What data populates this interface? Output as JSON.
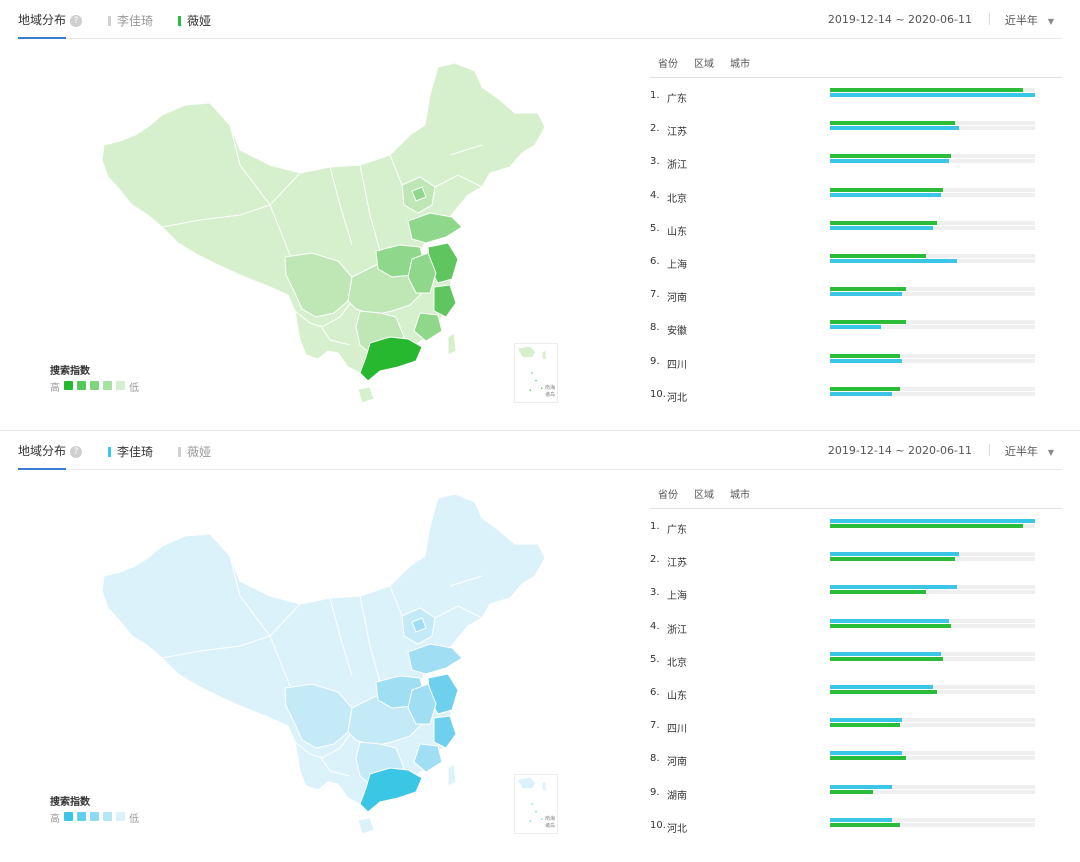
{
  "colors": {
    "green": "#2bbd3a",
    "blue": "#3cc6e6",
    "track": "#efefef"
  },
  "panels": [
    {
      "tab_title": "地域分布",
      "help_icon": "question-circle-icon",
      "legend": [
        {
          "label": "李佳琦",
          "color": "#d0d0d0",
          "active": false
        },
        {
          "label": "薇娅",
          "color": "#2bbd3a",
          "active": true
        }
      ],
      "date_range": "2019-12-14 ~ 2020-06-11",
      "period": "近半年",
      "map_legend": {
        "title": "搜索指数",
        "high": "高",
        "low": "低",
        "swatches": [
          "#24b92f",
          "#56c75a",
          "#7fd47e",
          "#a8e1a4",
          "#d3efcd"
        ]
      },
      "minimap_label": "南海\n诸岛",
      "rank_tabs": [
        "省份",
        "区域",
        "城市"
      ],
      "primary_color": "#2bbd3a",
      "secondary_color": "#3cc6e6",
      "ranking": [
        {
          "rank": "1.",
          "name": "广东",
          "primary": 0.94,
          "secondary": 1.0
        },
        {
          "rank": "2.",
          "name": "江苏",
          "primary": 0.61,
          "secondary": 0.63
        },
        {
          "rank": "3.",
          "name": "浙江",
          "primary": 0.59,
          "secondary": 0.58
        },
        {
          "rank": "4.",
          "name": "北京",
          "primary": 0.55,
          "secondary": 0.54
        },
        {
          "rank": "5.",
          "name": "山东",
          "primary": 0.52,
          "secondary": 0.5
        },
        {
          "rank": "6.",
          "name": "上海",
          "primary": 0.47,
          "secondary": 0.62
        },
        {
          "rank": "7.",
          "name": "河南",
          "primary": 0.37,
          "secondary": 0.35
        },
        {
          "rank": "8.",
          "name": "安徽",
          "primary": 0.37,
          "secondary": 0.25
        },
        {
          "rank": "9.",
          "name": "四川",
          "primary": 0.34,
          "secondary": 0.35
        },
        {
          "rank": "10.",
          "name": "河北",
          "primary": 0.34,
          "secondary": 0.3
        }
      ],
      "map": {
        "base": "#d6f0cd",
        "mid": "#bfe7b6",
        "dark": "#8fd78a",
        "darker": "#5ec55f",
        "darkest": "#28b82f",
        "stroke": "#ffffff"
      }
    },
    {
      "tab_title": "地域分布",
      "help_icon": "question-circle-icon",
      "legend": [
        {
          "label": "李佳琦",
          "color": "#3cc6e6",
          "active": true
        },
        {
          "label": "薇娅",
          "color": "#d0d0d0",
          "active": false
        }
      ],
      "date_range": "2019-12-14 ~ 2020-06-11",
      "period": "近半年",
      "map_legend": {
        "title": "搜索指数",
        "high": "高",
        "low": "低",
        "swatches": [
          "#3cc6e6",
          "#62d0ec",
          "#8cdbf1",
          "#b4e6f6",
          "#dbf2fb"
        ]
      },
      "minimap_label": "南海\n诸岛",
      "rank_tabs": [
        "省份",
        "区域",
        "城市"
      ],
      "primary_color": "#3cc6e6",
      "secondary_color": "#2bbd3a",
      "ranking": [
        {
          "rank": "1.",
          "name": "广东",
          "primary": 1.0,
          "secondary": 0.94
        },
        {
          "rank": "2.",
          "name": "江苏",
          "primary": 0.63,
          "secondary": 0.61
        },
        {
          "rank": "3.",
          "name": "上海",
          "primary": 0.62,
          "secondary": 0.47
        },
        {
          "rank": "4.",
          "name": "浙江",
          "primary": 0.58,
          "secondary": 0.59
        },
        {
          "rank": "5.",
          "name": "北京",
          "primary": 0.54,
          "secondary": 0.55
        },
        {
          "rank": "6.",
          "name": "山东",
          "primary": 0.5,
          "secondary": 0.52
        },
        {
          "rank": "7.",
          "name": "四川",
          "primary": 0.35,
          "secondary": 0.34
        },
        {
          "rank": "8.",
          "name": "河南",
          "primary": 0.35,
          "secondary": 0.37
        },
        {
          "rank": "9.",
          "name": "湖南",
          "primary": 0.3,
          "secondary": 0.21
        },
        {
          "rank": "10.",
          "name": "河北",
          "primary": 0.3,
          "secondary": 0.34
        }
      ],
      "map": {
        "base": "#dcf2fb",
        "mid": "#c4eaf8",
        "dark": "#9fdef3",
        "darker": "#6fd0ee",
        "darkest": "#3cc6e6",
        "stroke": "#ffffff"
      }
    }
  ]
}
